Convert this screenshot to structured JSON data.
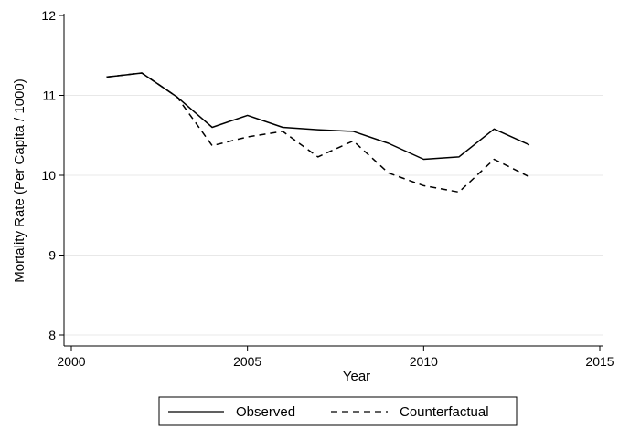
{
  "chart_data": {
    "type": "line",
    "xlabel": "Year",
    "ylabel": "Mortality Rate (Per Capita / 1000)",
    "xlim": [
      2000,
      2015
    ],
    "ylim": [
      8,
      12
    ],
    "xticks": [
      2000,
      2005,
      2010,
      2015
    ],
    "yticks": [
      8,
      9,
      10,
      11,
      12
    ],
    "x_tick_labels": [
      "2000",
      "2005",
      "2010",
      "2015"
    ],
    "y_tick_labels": [
      "8",
      "9",
      "10",
      "11",
      "12"
    ],
    "grid": "horizontal",
    "legend_position": "bottom",
    "x": [
      2001,
      2002,
      2003,
      2004,
      2005,
      2006,
      2007,
      2008,
      2009,
      2010,
      2011,
      2012,
      2013
    ],
    "series": [
      {
        "name": "Observed",
        "style": "solid",
        "color": "#000000",
        "values": [
          11.23,
          11.28,
          10.98,
          10.6,
          10.75,
          10.6,
          10.57,
          10.55,
          10.4,
          10.2,
          10.23,
          10.58,
          10.38
        ]
      },
      {
        "name": "Counterfactual",
        "style": "dashed",
        "color": "#000000",
        "values": [
          11.23,
          11.28,
          10.98,
          10.37,
          10.48,
          10.55,
          10.23,
          10.43,
          10.03,
          9.87,
          9.79,
          10.2,
          9.98
        ]
      }
    ]
  }
}
